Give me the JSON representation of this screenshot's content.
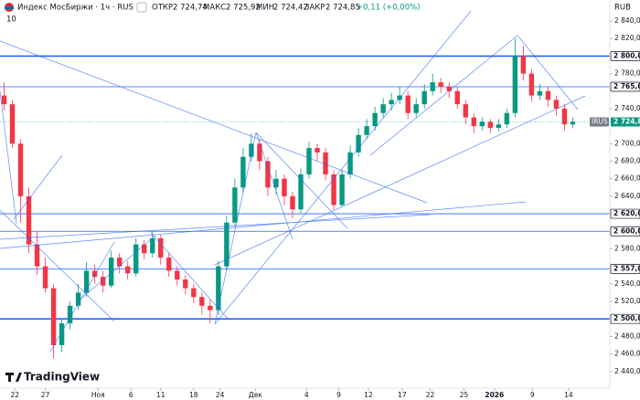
{
  "header": {
    "symbol": "Индекс МосБиржи · 1ч · RUS",
    "open_label": "ОТКР",
    "open": "2 724,74",
    "high_label": "МАКС",
    "high": "2 725,92",
    "low_label": "МИН",
    "low": "2 724,42",
    "close_label": "ЗАКР",
    "close": "2 724,85",
    "change": "+0,11 (+0,00%)",
    "count": "10",
    "currency": "RUB",
    "logo": "TradingView"
  },
  "chart_data": {
    "type": "candlestick",
    "x": [
      0,
      1,
      2,
      3,
      4,
      5,
      6,
      7,
      8,
      9,
      10,
      11,
      12,
      13,
      14,
      15,
      16,
      17,
      18,
      19,
      20,
      21,
      22,
      23,
      24,
      25,
      26,
      27,
      28,
      29,
      30,
      31,
      32,
      33,
      34,
      35,
      36,
      37,
      38,
      39,
      40,
      41,
      42,
      43,
      44,
      45,
      46,
      47,
      48,
      49,
      50,
      51,
      52,
      53,
      54,
      55,
      56,
      57,
      58,
      59,
      60,
      61,
      62,
      63,
      64,
      65,
      66,
      67,
      68,
      69
    ],
    "candles": {
      "open": [
        2755,
        2745,
        2700,
        2640,
        2585,
        2560,
        2535,
        2470,
        2495,
        2515,
        2530,
        2555,
        2548,
        2538,
        2570,
        2560,
        2552,
        2585,
        2575,
        2592,
        2570,
        2555,
        2545,
        2535,
        2525,
        2515,
        2510,
        2560,
        2610,
        2650,
        2685,
        2700,
        2680,
        2650,
        2660,
        2640,
        2625,
        2665,
        2695,
        2690,
        2665,
        2630,
        2665,
        2690,
        2710,
        2720,
        2735,
        2745,
        2750,
        2755,
        2735,
        2745,
        2760,
        2770,
        2765,
        2760,
        2745,
        2730,
        2720,
        2725,
        2718,
        2722,
        2735,
        2800,
        2780,
        2755,
        2760,
        2750,
        2740,
        2722
      ],
      "high": [
        2770,
        2750,
        2705,
        2650,
        2600,
        2570,
        2540,
        2500,
        2520,
        2540,
        2565,
        2562,
        2555,
        2578,
        2575,
        2566,
        2592,
        2590,
        2600,
        2596,
        2575,
        2560,
        2550,
        2540,
        2530,
        2522,
        2566,
        2618,
        2660,
        2695,
        2712,
        2705,
        2685,
        2670,
        2665,
        2645,
        2672,
        2702,
        2700,
        2695,
        2670,
        2670,
        2698,
        2718,
        2728,
        2742,
        2752,
        2758,
        2765,
        2760,
        2752,
        2768,
        2780,
        2775,
        2770,
        2765,
        2750,
        2735,
        2730,
        2728,
        2728,
        2740,
        2820,
        2812,
        2785,
        2768,
        2765,
        2755,
        2745,
        2730
      ],
      "low": [
        2738,
        2695,
        2610,
        2575,
        2550,
        2530,
        2455,
        2462,
        2488,
        2510,
        2525,
        2540,
        2530,
        2535,
        2552,
        2545,
        2548,
        2568,
        2570,
        2562,
        2548,
        2538,
        2528,
        2518,
        2505,
        2495,
        2505,
        2555,
        2605,
        2645,
        2680,
        2670,
        2640,
        2642,
        2630,
        2615,
        2620,
        2660,
        2680,
        2658,
        2625,
        2628,
        2660,
        2685,
        2705,
        2715,
        2730,
        2738,
        2745,
        2728,
        2730,
        2740,
        2755,
        2758,
        2752,
        2740,
        2722,
        2712,
        2715,
        2712,
        2714,
        2718,
        2730,
        2772,
        2748,
        2750,
        2742,
        2732,
        2715,
        2718
      ],
      "close": [
        2745,
        2700,
        2640,
        2585,
        2560,
        2535,
        2470,
        2495,
        2515,
        2530,
        2555,
        2548,
        2538,
        2570,
        2560,
        2552,
        2585,
        2575,
        2592,
        2570,
        2555,
        2545,
        2535,
        2525,
        2515,
        2510,
        2560,
        2610,
        2650,
        2685,
        2700,
        2680,
        2650,
        2660,
        2640,
        2625,
        2665,
        2695,
        2690,
        2665,
        2630,
        2665,
        2690,
        2710,
        2720,
        2735,
        2745,
        2750,
        2755,
        2735,
        2745,
        2760,
        2770,
        2765,
        2760,
        2745,
        2730,
        2720,
        2725,
        2718,
        2722,
        2735,
        2800,
        2780,
        2755,
        2760,
        2750,
        2740,
        2722,
        2725
      ]
    },
    "up_color": "#089981",
    "down_color": "#f23645",
    "xlim": [
      -0.5,
      73.5
    ],
    "xticks": [
      {
        "value": 1.3,
        "label": "22"
      },
      {
        "value": 5,
        "label": "27"
      },
      {
        "value": 11.4,
        "label": "Ноя"
      },
      {
        "value": 15.4,
        "label": "6"
      },
      {
        "value": 19,
        "label": "11"
      },
      {
        "value": 23,
        "label": "18"
      },
      {
        "value": 26.2,
        "label": "24"
      },
      {
        "value": 30.5,
        "label": "Дек"
      },
      {
        "value": 36.7,
        "label": "4"
      },
      {
        "value": 40.6,
        "label": "9"
      },
      {
        "value": 44.2,
        "label": "12"
      },
      {
        "value": 48.3,
        "label": "17"
      },
      {
        "value": 51.7,
        "label": "22"
      },
      {
        "value": 55.8,
        "label": "25"
      },
      {
        "value": 59.5,
        "label": "2026"
      },
      {
        "value": 64.1,
        "label": "9"
      },
      {
        "value": 68.5,
        "label": "14"
      }
    ],
    "ylim": [
      2421,
      2864
    ],
    "yticks": [
      {
        "value": 2840,
        "label": "2 840,00"
      },
      {
        "value": 2820,
        "label": "2 820,00"
      },
      {
        "value": 2780,
        "label": "2 780,00"
      },
      {
        "value": 2740,
        "label": "2 740,00"
      },
      {
        "value": 2700,
        "label": "2 700,00"
      },
      {
        "value": 2680,
        "label": "2 680,00"
      },
      {
        "value": 2660,
        "label": "2 660,00"
      },
      {
        "value": 2640,
        "label": "2 640,00"
      },
      {
        "value": 2580,
        "label": "2 580,00"
      },
      {
        "value": 2540,
        "label": "2 540,00"
      },
      {
        "value": 2520,
        "label": "2 520,00"
      },
      {
        "value": 2480,
        "label": "2 480,00"
      },
      {
        "value": 2460,
        "label": "2 460,00"
      },
      {
        "value": 2440,
        "label": "2 440,00"
      }
    ],
    "levels": [
      {
        "value": 2800,
        "label": "2 800,00"
      },
      {
        "value": 2765,
        "label": "2 765,00"
      },
      {
        "value": 2620,
        "label": "2 620,00"
      },
      {
        "value": 2600,
        "label": "2 600,00"
      },
      {
        "value": 2557,
        "label": "2 557,00"
      },
      {
        "value": 2500,
        "label": "2 500,00"
      }
    ],
    "level_color": "#2962ff",
    "last_price": {
      "value": 2724.85,
      "label": "2 724,85",
      "tag": "IRUS"
    }
  }
}
